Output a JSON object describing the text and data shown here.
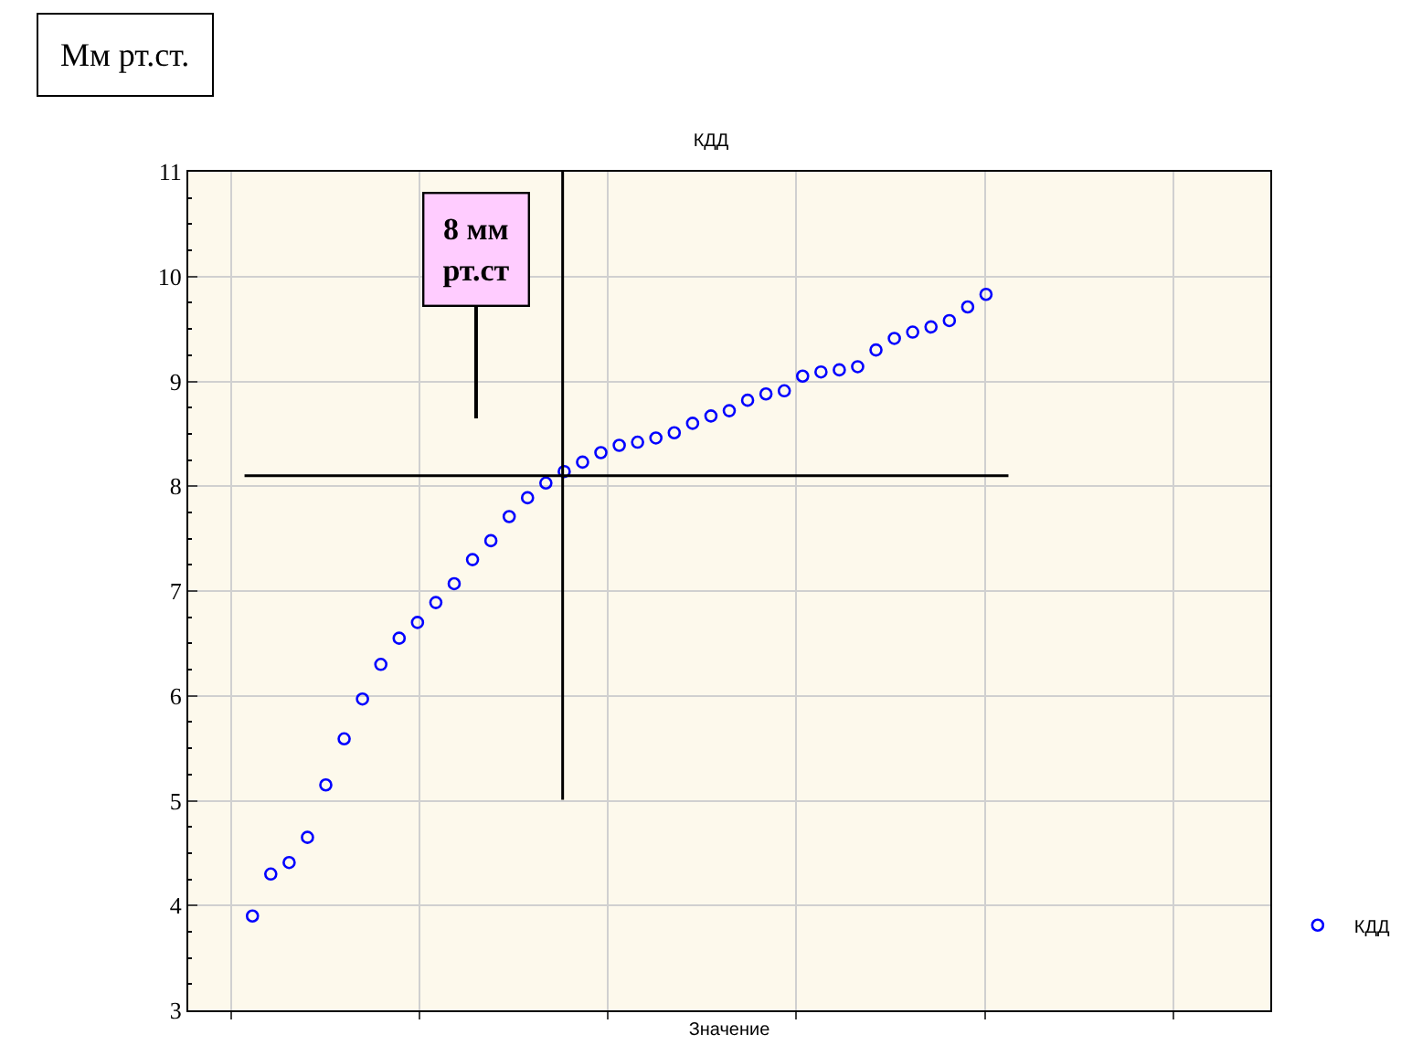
{
  "chart_data": {
    "type": "scatter",
    "title": "КДД",
    "xlabel": "Значение",
    "ylabel": "Мм рт.ст.",
    "categories": [
      null,
      null,
      null,
      null,
      null,
      null,
      null,
      null,
      null,
      null,
      null,
      null,
      null,
      null,
      null,
      null,
      null,
      null,
      null,
      null,
      null,
      null,
      null,
      null,
      null,
      null,
      null,
      null,
      null,
      null,
      null,
      null,
      null,
      null,
      null,
      null,
      null,
      null,
      null,
      null,
      null,
      null,
      null,
      null,
      null,
      null,
      null,
      null,
      null,
      null,
      null,
      null,
      null,
      null,
      null,
      null,
      null,
      null,
      null
    ],
    "series": [
      {
        "name": "КДД",
        "color": "#0000ff",
        "values": [
          null,
          null,
          null,
          3.9,
          4.3,
          4.41,
          4.65,
          5.15,
          5.59,
          5.97,
          6.3,
          6.55,
          6.7,
          6.89,
          7.07,
          7.3,
          7.48,
          7.71,
          7.89,
          8.03,
          8.14,
          8.23,
          8.32,
          8.39,
          8.42,
          8.46,
          8.51,
          8.6,
          8.67,
          8.72,
          8.82,
          8.88,
          8.91,
          9.05,
          9.09,
          9.11,
          9.14,
          9.3,
          9.41,
          9.47,
          9.52,
          9.58,
          9.71,
          9.83,
          null,
          null,
          null,
          null,
          null,
          null,
          null,
          null,
          null,
          null,
          null,
          null,
          null,
          null,
          null
        ]
      }
    ],
    "ylim": [
      3,
      11
    ],
    "yticks": [
      3,
      4,
      5,
      6,
      7,
      8,
      9,
      10,
      11
    ],
    "grid": true,
    "legend": "bottom right",
    "marker": "circle",
    "tick_labels": "y",
    "ref_lines": [
      {
        "axis": "y",
        "value": 8.1,
        "color": "#000000"
      }
    ],
    "annotations": [
      "8 мм\nрт.ст"
    ]
  }
}
